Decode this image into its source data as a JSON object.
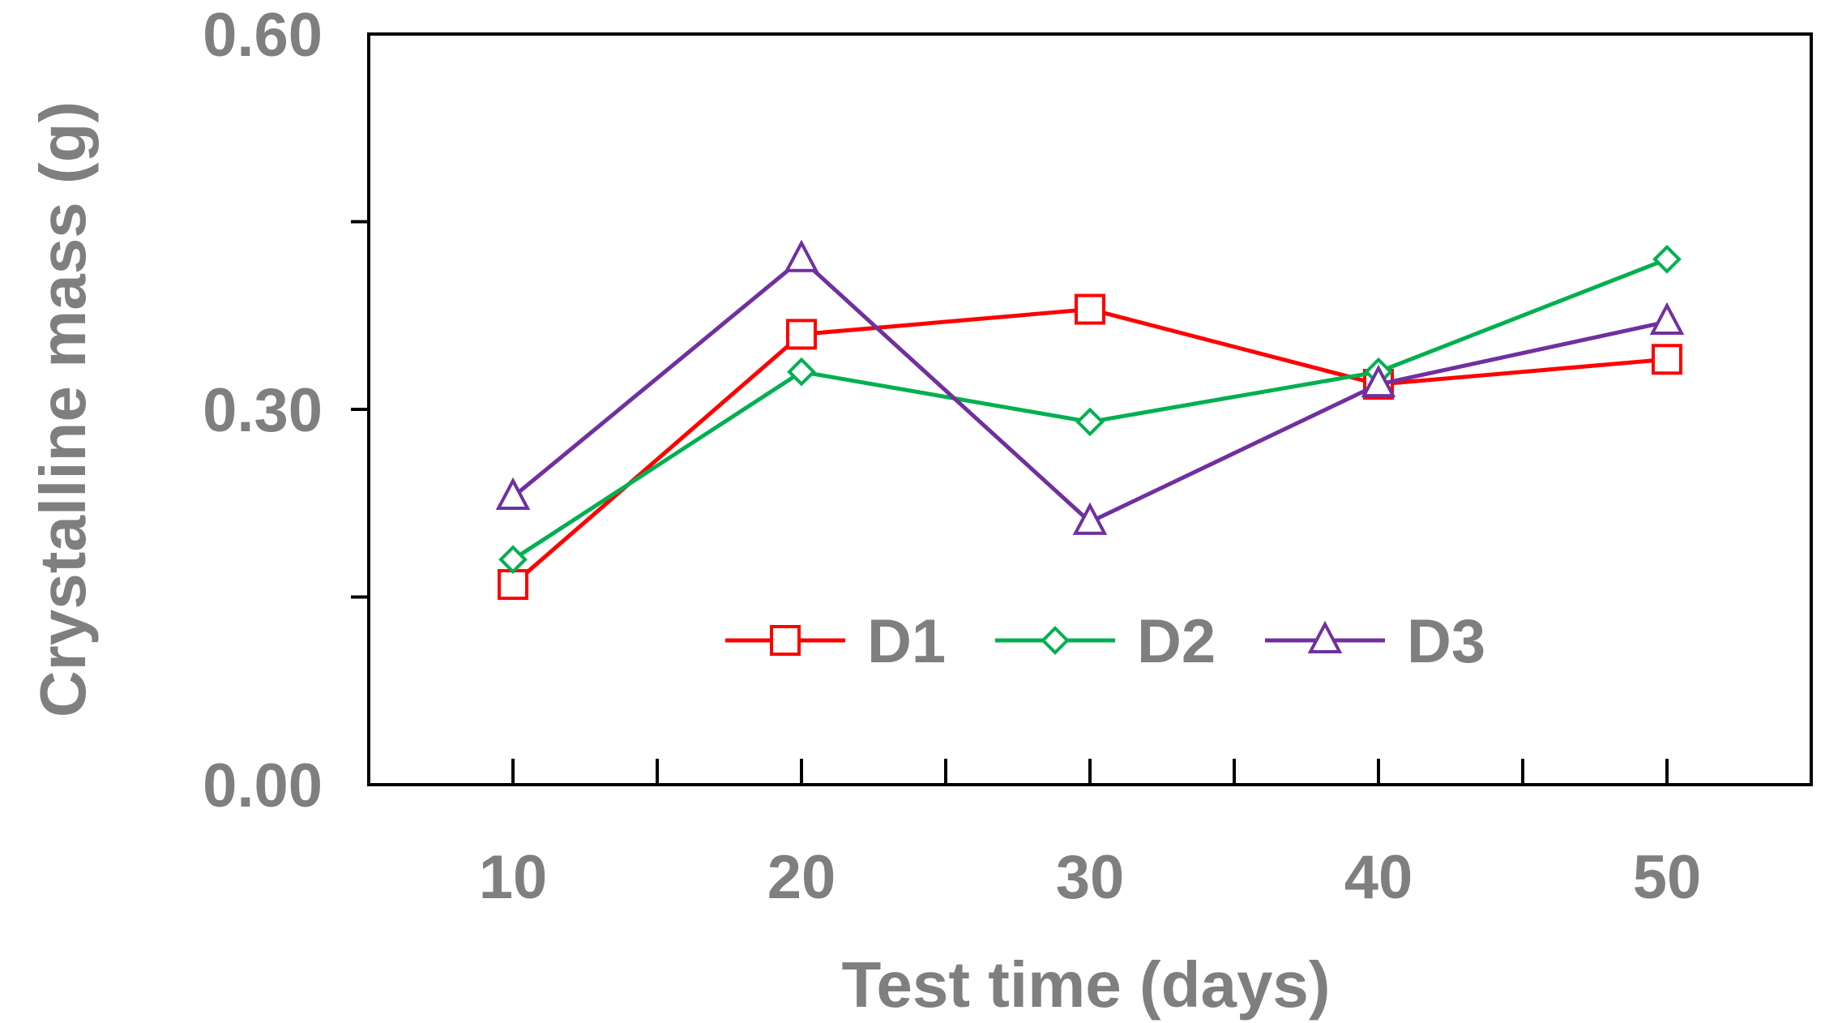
{
  "chart_data": {
    "type": "line",
    "title": "",
    "xlabel": "Test time (days)",
    "ylabel": "Crystalline mass (g)",
    "x": [
      10,
      20,
      30,
      40,
      50
    ],
    "xlim": [
      5,
      55
    ],
    "ylim": [
      0,
      0.6
    ],
    "x_ticks": [
      "10",
      "20",
      "30",
      "40",
      "50"
    ],
    "y_ticks": [
      "0.00",
      "0.30",
      "0.60"
    ],
    "grid": false,
    "legend_position": "center-bottom",
    "series": [
      {
        "name": "D1",
        "color": "#ff0000",
        "marker": "square",
        "values": [
          0.16,
          0.36,
          0.38,
          0.32,
          0.34
        ]
      },
      {
        "name": "D2",
        "color": "#00b050",
        "marker": "diamond",
        "values": [
          0.18,
          0.33,
          0.29,
          0.33,
          0.42
        ]
      },
      {
        "name": "D3",
        "color": "#7030a0",
        "marker": "triangle",
        "values": [
          0.23,
          0.42,
          0.21,
          0.32,
          0.37
        ]
      }
    ]
  }
}
